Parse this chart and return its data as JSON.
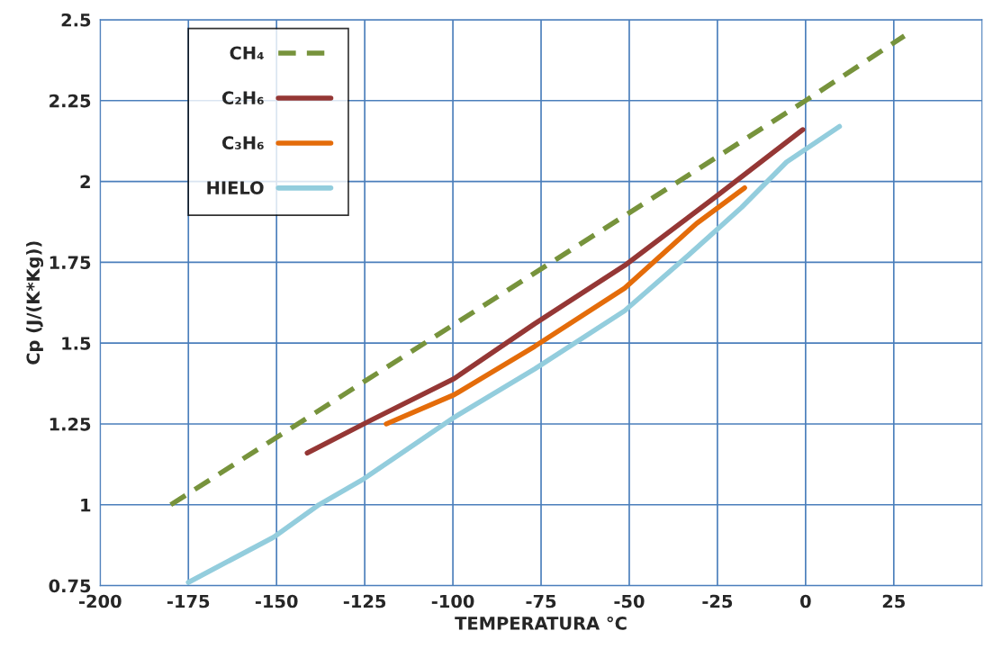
{
  "chart_data": {
    "type": "line",
    "xlabel": "TEMPERATURA °C",
    "ylabel": "Cp (J/(K*Kg))",
    "xlim": [
      -200,
      50
    ],
    "xticks": [
      -200,
      -175,
      -150,
      -125,
      -100,
      -75,
      -50,
      -25,
      0,
      25
    ],
    "ylim": [
      0.75,
      2.5
    ],
    "yticks": [
      0.75,
      1,
      1.25,
      1.5,
      1.75,
      2,
      2.25,
      2.5
    ],
    "grid": true,
    "legend": "top left",
    "series": [
      {
        "name": "CH₄",
        "color": "#77933c",
        "line_style": "dashed",
        "x": [
          -180,
          0,
          28
        ],
        "values": [
          1.0,
          2.25,
          2.45
        ]
      },
      {
        "name": "C₂H₆",
        "color": "#953735",
        "line_style": "solid",
        "x": [
          -141.3,
          -123.5,
          -99.7,
          -76.8,
          -51.3,
          -25.8,
          -0.8
        ],
        "values": [
          1.16,
          1.26,
          1.39,
          1.56,
          1.74,
          1.95,
          2.16
        ]
      },
      {
        "name": "C₃H₆",
        "color": "#e46c0a",
        "line_style": "solid",
        "x": [
          -118.9,
          -99.7,
          -76.8,
          -51.3,
          -30.9,
          -17.3
        ],
        "values": [
          1.25,
          1.34,
          1.49,
          1.67,
          1.87,
          1.98
        ]
      },
      {
        "name": "HIELO",
        "color": "#93cddd",
        "line_style": "solid",
        "x": [
          -175,
          -150.8,
          -138,
          -125.3,
          -99.7,
          -76.8,
          -51.3,
          -33.4,
          -18.1,
          -5.4,
          9.6
        ],
        "values": [
          0.76,
          0.9,
          1.0,
          1.08,
          1.27,
          1.42,
          1.6,
          1.77,
          1.92,
          2.06,
          2.17
        ]
      }
    ]
  }
}
